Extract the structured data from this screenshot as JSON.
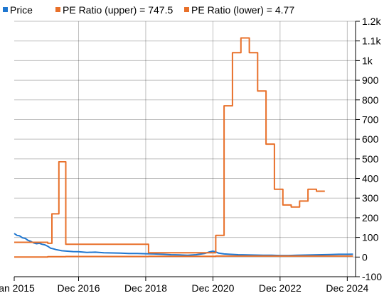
{
  "chart_data": {
    "type": "line",
    "legend_position": "top-left",
    "grid": true,
    "x_range": [
      "2015-01-01",
      "2025-03-01"
    ],
    "ylim": [
      -100,
      1200
    ],
    "x_ticks": [
      {
        "date": "2015-01-01",
        "label": "Jan 2015"
      },
      {
        "date": "2016-12-01",
        "label": "Dec 2016"
      },
      {
        "date": "2018-12-01",
        "label": "Dec 2018"
      },
      {
        "date": "2020-12-01",
        "label": "Dec 2020"
      },
      {
        "date": "2022-12-01",
        "label": "Dec 2022"
      },
      {
        "date": "2024-12-01",
        "label": "Dec 2024"
      }
    ],
    "y_ticks": [
      {
        "value": -100,
        "label": "-100"
      },
      {
        "value": 0,
        "label": "0"
      },
      {
        "value": 100,
        "label": "100"
      },
      {
        "value": 200,
        "label": "200"
      },
      {
        "value": 300,
        "label": "300"
      },
      {
        "value": 400,
        "label": "400"
      },
      {
        "value": 500,
        "label": "500"
      },
      {
        "value": 600,
        "label": "600"
      },
      {
        "value": 700,
        "label": "700"
      },
      {
        "value": 800,
        "label": "800"
      },
      {
        "value": 900,
        "label": "900"
      },
      {
        "value": 1000,
        "label": "1k"
      },
      {
        "value": 1100,
        "label": "1.1k"
      },
      {
        "value": 1200,
        "label": "1.2k"
      }
    ],
    "series": [
      {
        "name": "Price",
        "color": "#1f77d0",
        "step": false,
        "points": [
          [
            "2015-01-01",
            120
          ],
          [
            "2015-02-01",
            110
          ],
          [
            "2015-03-01",
            108
          ],
          [
            "2015-04-01",
            98
          ],
          [
            "2015-05-01",
            95
          ],
          [
            "2015-06-01",
            85
          ],
          [
            "2015-07-01",
            80
          ],
          [
            "2015-08-01",
            72
          ],
          [
            "2015-09-01",
            68
          ],
          [
            "2015-10-01",
            70
          ],
          [
            "2015-11-01",
            65
          ],
          [
            "2015-12-01",
            62
          ],
          [
            "2016-01-01",
            55
          ],
          [
            "2016-02-01",
            45
          ],
          [
            "2016-03-01",
            42
          ],
          [
            "2016-04-01",
            38
          ],
          [
            "2016-06-01",
            32
          ],
          [
            "2016-08-01",
            30
          ],
          [
            "2016-10-01",
            28
          ],
          [
            "2016-12-01",
            27
          ],
          [
            "2017-03-01",
            24
          ],
          [
            "2017-06-01",
            25
          ],
          [
            "2017-09-01",
            22
          ],
          [
            "2017-12-01",
            21
          ],
          [
            "2018-03-01",
            20
          ],
          [
            "2018-06-01",
            18
          ],
          [
            "2018-09-01",
            18
          ],
          [
            "2018-12-01",
            17
          ],
          [
            "2019-03-01",
            16
          ],
          [
            "2019-06-01",
            14
          ],
          [
            "2019-09-01",
            12
          ],
          [
            "2019-12-01",
            11
          ],
          [
            "2020-03-01",
            9
          ],
          [
            "2020-06-01",
            12
          ],
          [
            "2020-09-01",
            18
          ],
          [
            "2020-10-15",
            25
          ],
          [
            "2020-12-01",
            30
          ],
          [
            "2021-01-01",
            26
          ],
          [
            "2021-02-01",
            20
          ],
          [
            "2021-04-01",
            16
          ],
          [
            "2021-06-01",
            14
          ],
          [
            "2021-09-01",
            12
          ],
          [
            "2021-12-01",
            11
          ],
          [
            "2022-03-01",
            10
          ],
          [
            "2022-06-01",
            9
          ],
          [
            "2022-09-01",
            9
          ],
          [
            "2022-12-01",
            8
          ],
          [
            "2023-03-01",
            8
          ],
          [
            "2023-06-01",
            9
          ],
          [
            "2023-09-01",
            10
          ],
          [
            "2023-12-01",
            11
          ],
          [
            "2024-03-01",
            12
          ],
          [
            "2024-06-01",
            13
          ],
          [
            "2024-09-01",
            14
          ],
          [
            "2024-12-01",
            14
          ],
          [
            "2025-02-01",
            15
          ]
        ]
      },
      {
        "name": "PE Ratio (upper) = 747.5",
        "color": "#e8702a",
        "step": true,
        "points": [
          [
            "2015-01-01",
            75
          ],
          [
            "2016-01-01",
            70
          ],
          [
            "2016-02-15",
            220
          ],
          [
            "2016-05-01",
            485
          ],
          [
            "2016-07-15",
            65
          ],
          [
            "2019-01-01",
            22
          ],
          [
            "2021-01-01",
            110
          ],
          [
            "2021-04-01",
            770
          ],
          [
            "2021-07-01",
            1040
          ],
          [
            "2021-10-01",
            1115
          ],
          [
            "2022-01-01",
            1040
          ],
          [
            "2022-04-01",
            845
          ],
          [
            "2022-07-01",
            575
          ],
          [
            "2022-10-01",
            345
          ],
          [
            "2023-01-01",
            265
          ],
          [
            "2023-04-01",
            255
          ],
          [
            "2023-07-01",
            285
          ],
          [
            "2023-10-01",
            345
          ],
          [
            "2024-01-01",
            335
          ],
          [
            "2024-04-01",
            335
          ]
        ]
      },
      {
        "name": "PE Ratio (lower) = 4.77",
        "color": "#e8702a",
        "step": true,
        "points": [
          [
            "2015-01-01",
            0
          ],
          [
            "2016-01-01",
            2
          ],
          [
            "2016-07-15",
            3
          ],
          [
            "2019-01-01",
            4
          ],
          [
            "2021-01-01",
            5
          ],
          [
            "2023-01-01",
            5
          ],
          [
            "2024-04-01",
            5
          ],
          [
            "2025-02-01",
            5
          ]
        ]
      }
    ]
  }
}
